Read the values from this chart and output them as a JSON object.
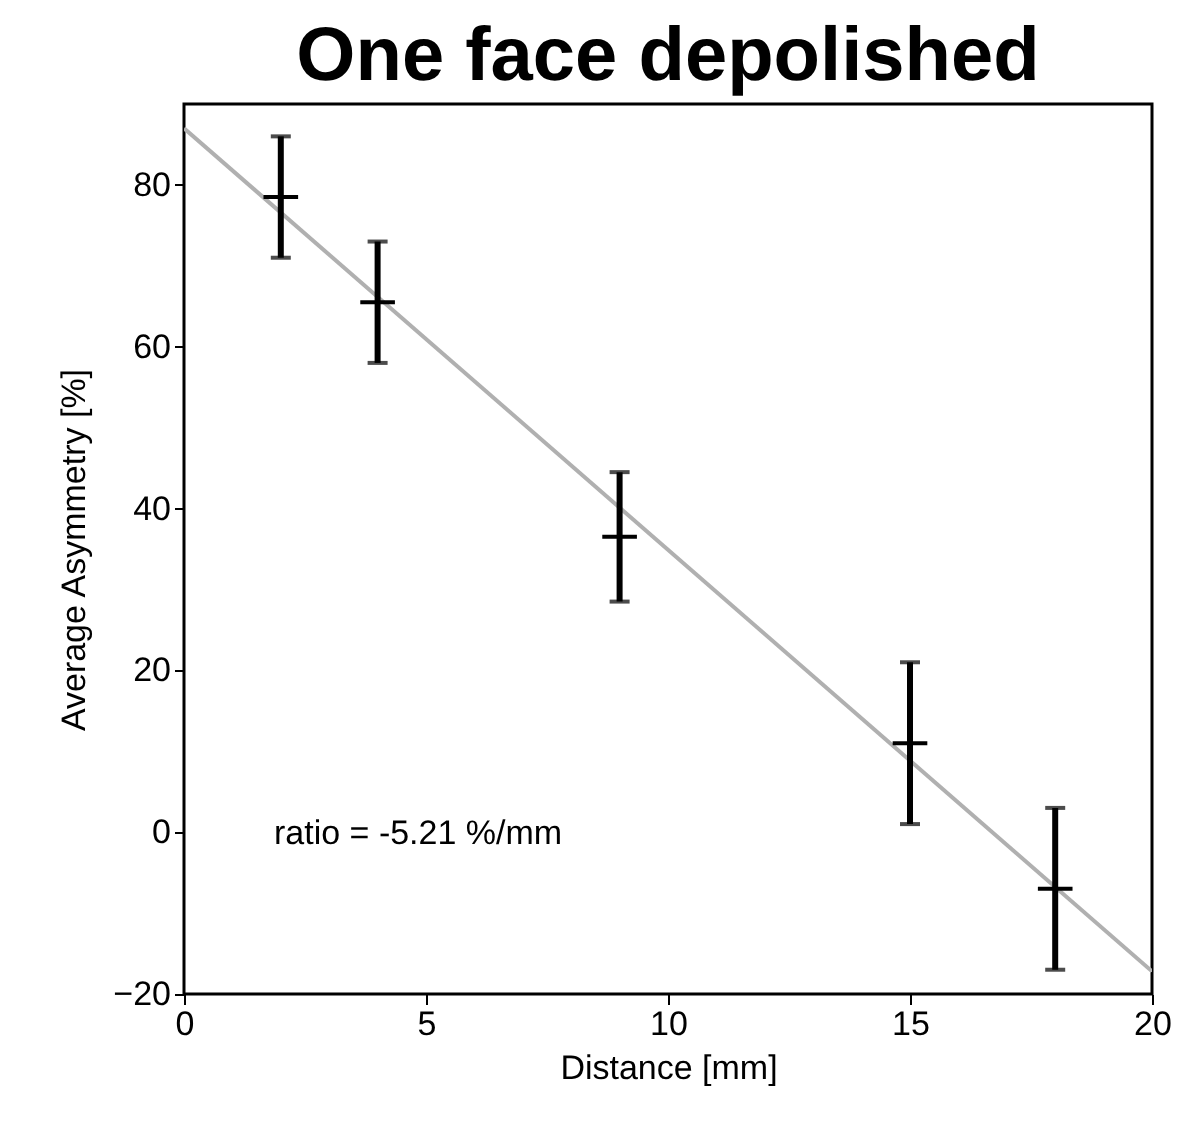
{
  "chart_data": {
    "type": "scatter",
    "title": "One face depolished",
    "xlabel": "Distance [mm]",
    "ylabel": "Average Asymmetry [%]",
    "xlim": [
      0,
      20
    ],
    "ylim": [
      -20,
      90
    ],
    "xticks": [
      0,
      5,
      10,
      15,
      20
    ],
    "yticks": [
      -20,
      0,
      20,
      40,
      60,
      80
    ],
    "grid": false,
    "marker": "cross",
    "annotations": [
      "ratio = -5.21 %/mm"
    ],
    "series": [
      {
        "type": "line",
        "marker": "none",
        "color": "#b0b0b0",
        "x": [
          0,
          20
        ],
        "values": [
          87,
          -17.2
        ]
      },
      {
        "color": "#000000",
        "x": [
          2,
          4,
          9,
          15,
          18
        ],
        "values": [
          78.5,
          65.5,
          36.5,
          11,
          -7
        ],
        "errors": [
          7.5,
          7.5,
          8,
          10,
          10
        ]
      }
    ]
  }
}
